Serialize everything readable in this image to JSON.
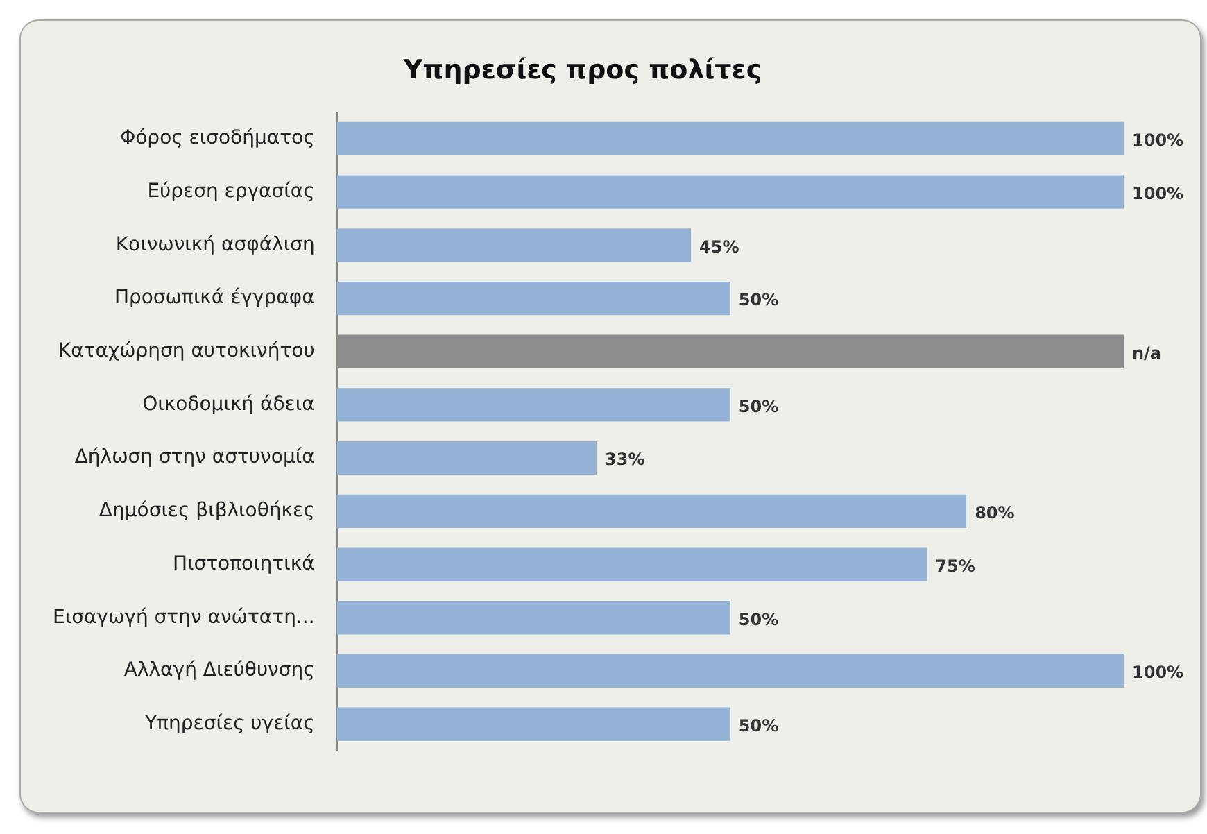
{
  "chart_data": {
    "type": "bar",
    "orientation": "horizontal",
    "title": "Υπηρεσίες προς πολίτες",
    "categories": [
      "Φόρος εισοδήματος",
      "Εύρεση εργασίας",
      "Κοινωνική ασφάλιση",
      "Προσωπικά έγγραφα",
      "Καταχώρηση αυτοκινήτου",
      "Οικοδομική άδεια",
      "Δήλωση στην αστυνομία",
      "Δημόσιες βιβλιοθήκες",
      "Πιστοποιητικά",
      "Εισαγωγή στην ανώτατη...",
      "Αλλαγή Διεύθυνσης",
      "Υπηρεσίες υγείας"
    ],
    "values": [
      100,
      100,
      45,
      50,
      100,
      50,
      33,
      80,
      75,
      50,
      100,
      50
    ],
    "value_labels": [
      "100%",
      "100%",
      "45%",
      "50%",
      "n/a",
      "50%",
      "33%",
      "80%",
      "75%",
      "50%",
      "100%",
      "50%"
    ],
    "colors": [
      "#95b3d7",
      "#95b3d7",
      "#95b3d7",
      "#95b3d7",
      "#8c8c8c",
      "#95b3d7",
      "#95b3d7",
      "#95b3d7",
      "#95b3d7",
      "#95b3d7",
      "#95b3d7",
      "#95b3d7"
    ],
    "legend": false,
    "tick_labels": "y"
  }
}
